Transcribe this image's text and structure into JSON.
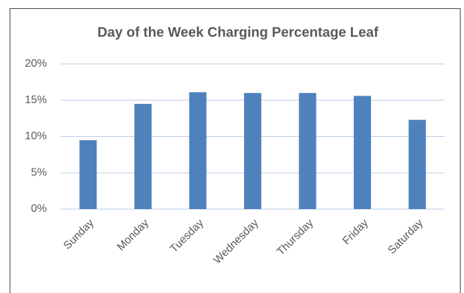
{
  "chart_data": {
    "type": "bar",
    "title": "Day of the Week Charging Percentage Leaf",
    "categories": [
      "Sunday",
      "Monday",
      "Tuesday",
      "Wednesday",
      "Thursday",
      "Friday",
      "Saturday"
    ],
    "values": [
      9.5,
      14.5,
      16.1,
      16.0,
      16.0,
      15.6,
      12.3
    ],
    "color": "#4f81bd",
    "ylim": [
      0,
      20
    ],
    "yticks": [
      {
        "value": 0,
        "label": "0%"
      },
      {
        "value": 5,
        "label": "5%"
      },
      {
        "value": 10,
        "label": "10%"
      },
      {
        "value": 15,
        "label": "15%"
      },
      {
        "value": 20,
        "label": "20%"
      }
    ],
    "grid": true
  }
}
